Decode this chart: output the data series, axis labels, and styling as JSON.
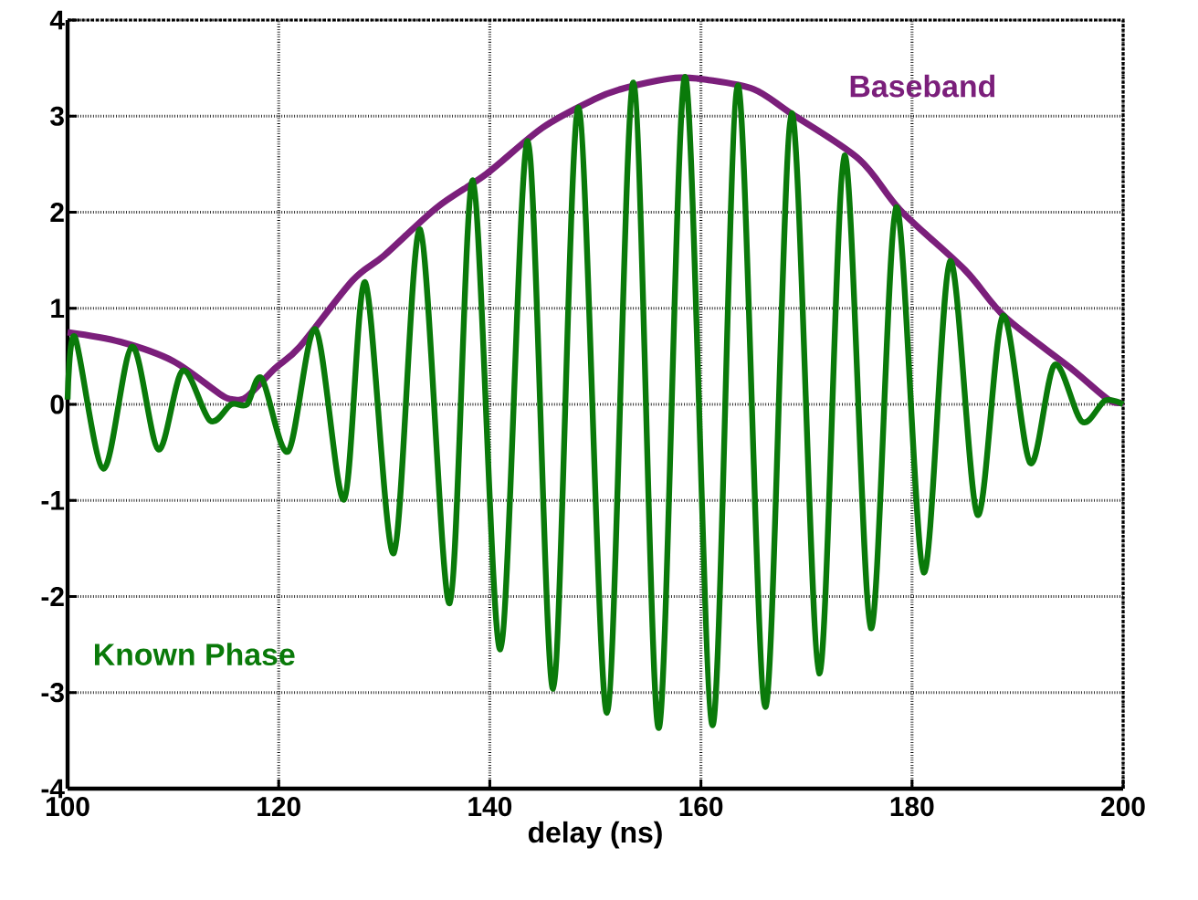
{
  "chart_data": {
    "type": "line",
    "xlabel": "delay (ns)",
    "xlim": [
      100,
      200
    ],
    "ylim": [
      -4,
      4
    ],
    "xticks": [
      100,
      120,
      140,
      160,
      180,
      200
    ],
    "yticks": [
      -4,
      -3,
      -2,
      -1,
      0,
      1,
      2,
      3,
      4
    ],
    "grid": true,
    "legend": false,
    "marker": "none",
    "line_style": "solid",
    "series": [
      {
        "name": "Baseband",
        "color": "#7b1f7b",
        "x": [
          100,
          105,
          110,
          114.4,
          115.7,
          117,
          119.6,
          122,
          127,
          130,
          135,
          139.7,
          145,
          150,
          152.4,
          155.9,
          158,
          160.5,
          165,
          168.5,
          175,
          178.9,
          185,
          188.8,
          195,
          198.6,
          200
        ],
        "values": [
          0.75,
          0.65,
          0.45,
          0.11,
          0.05,
          0.08,
          0.37,
          0.6,
          1.29,
          1.55,
          2.05,
          2.4,
          2.88,
          3.18,
          3.28,
          3.37,
          3.4,
          3.38,
          3.28,
          3.03,
          2.55,
          2.02,
          1.4,
          0.91,
          0.38,
          0.05,
          0.02
        ]
      },
      {
        "name": "Known Phase",
        "color": "#0a7a0a",
        "x": [
          100,
          100.7,
          103.4,
          106.1,
          108.6,
          110.9,
          113.5,
          115.5,
          117,
          118.4,
          120.9,
          123.5,
          126.2,
          128.2,
          130.9,
          133.4,
          136.2,
          138.4,
          141.0,
          143.6,
          146.0,
          148.4,
          151.1,
          153.6,
          156.0,
          158.5,
          161.1,
          163.5,
          166.1,
          168.6,
          171.2,
          173.6,
          176.1,
          178.5,
          181.1,
          183.6,
          186.2,
          188.6,
          191.2,
          193.5,
          196.1,
          198.3,
          200
        ],
        "values": [
          0.05,
          0.7,
          -0.67,
          0.6,
          -0.47,
          0.35,
          -0.17,
          0.0,
          0.0,
          0.27,
          -0.49,
          0.78,
          -0.99,
          1.27,
          -1.55,
          1.82,
          -2.07,
          2.33,
          -2.55,
          2.74,
          -2.96,
          3.09,
          -3.21,
          3.35,
          -3.37,
          3.41,
          -3.34,
          3.32,
          -3.15,
          3.03,
          -2.8,
          2.59,
          -2.33,
          2.05,
          -1.75,
          1.49,
          -1.15,
          0.92,
          -0.61,
          0.41,
          -0.18,
          0.04,
          0.0
        ]
      }
    ]
  }
}
